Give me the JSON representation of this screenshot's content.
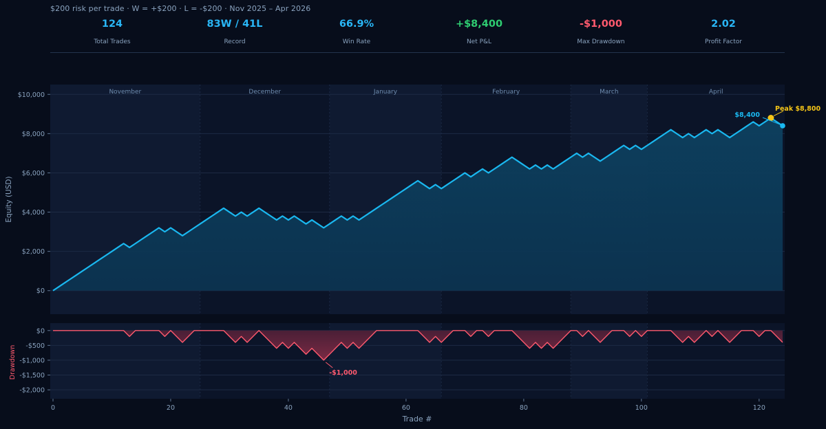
{
  "subtitle": "$200 risk per trade  ·  W = +$200  ·  L = -$200  ·  Nov 2025 – Apr 2026",
  "stats": [
    {
      "value": "124",
      "label": "Total Trades",
      "color": "#29b6f6"
    },
    {
      "value": "83W / 41L",
      "label": "Record",
      "color": "#29b6f6"
    },
    {
      "value": "66.9%",
      "label": "Win Rate",
      "color": "#29b6f6"
    },
    {
      "value": "+$8,400",
      "label": "Net P&L",
      "color": "#2ecc71"
    },
    {
      "value": "-$1,000",
      "label": "Max Drawdown",
      "color": "#ff5a6e"
    },
    {
      "value": "2.02",
      "label": "Profit Factor",
      "color": "#29b6f6"
    }
  ],
  "chart_data": {
    "type": "line",
    "xlabel": "Trade  #",
    "xlim": [
      0,
      124
    ],
    "xticks": [
      0,
      20,
      40,
      60,
      80,
      100,
      120
    ],
    "equity": {
      "ylabel": "Equity  (USD)",
      "ylim": [
        -1200,
        10500
      ],
      "yticks": [
        0,
        2000,
        4000,
        6000,
        8000,
        10000
      ],
      "ytick_labels": [
        "$0",
        "$2,000",
        "$4,000",
        "$6,000",
        "$8,000",
        "$10,000"
      ],
      "line_color": "#1ab8f0",
      "y": [
        0,
        200,
        400,
        600,
        800,
        1000,
        1200,
        1400,
        1600,
        1800,
        2000,
        2200,
        2400,
        2200,
        2400,
        2600,
        2800,
        3000,
        3200,
        3000,
        3200,
        3000,
        2800,
        3000,
        3200,
        3400,
        3600,
        3800,
        4000,
        4200,
        4000,
        3800,
        4000,
        3800,
        4000,
        4200,
        4000,
        3800,
        3600,
        3800,
        3600,
        3800,
        3600,
        3400,
        3600,
        3400,
        3200,
        3400,
        3600,
        3800,
        3600,
        3800,
        3600,
        3800,
        4000,
        4200,
        4400,
        4600,
        4800,
        5000,
        5200,
        5400,
        5600,
        5400,
        5200,
        5400,
        5200,
        5400,
        5600,
        5800,
        6000,
        5800,
        6000,
        6200,
        6000,
        6200,
        6400,
        6600,
        6800,
        6600,
        6400,
        6200,
        6400,
        6200,
        6400,
        6200,
        6400,
        6600,
        6800,
        7000,
        6800,
        7000,
        6800,
        6600,
        6800,
        7000,
        7200,
        7400,
        7200,
        7400,
        7200,
        7400,
        7600,
        7800,
        8000,
        8200,
        8000,
        7800,
        8000,
        7800,
        8000,
        8200,
        8000,
        8200,
        8000,
        7800,
        8000,
        8200,
        8400,
        8600,
        8400,
        8600,
        8800,
        8600,
        8400
      ]
    },
    "months": [
      "November",
      "December",
      "January",
      "February",
      "March",
      "April"
    ],
    "month_bounds": [
      25,
      47,
      66,
      88,
      101
    ],
    "peak": {
      "x": 122,
      "y": 8800,
      "label": "Peak  $8,800",
      "color": "#f5c518"
    },
    "final": {
      "x": 124,
      "y": 8400,
      "label": "$8,400"
    },
    "drawdown": {
      "ylabel": "Drawdown",
      "ylim": [
        -2300,
        250
      ],
      "yticks": [
        0,
        -500,
        -1000,
        -1500,
        -2000
      ],
      "ytick_labels": [
        "$0",
        "-$500",
        "-$1,000",
        "-$1,500",
        "-$2,000"
      ],
      "line_color": "#ff5a6e",
      "max_dd": {
        "x": 46,
        "y": -1000,
        "label": "-$1,000"
      }
    }
  }
}
